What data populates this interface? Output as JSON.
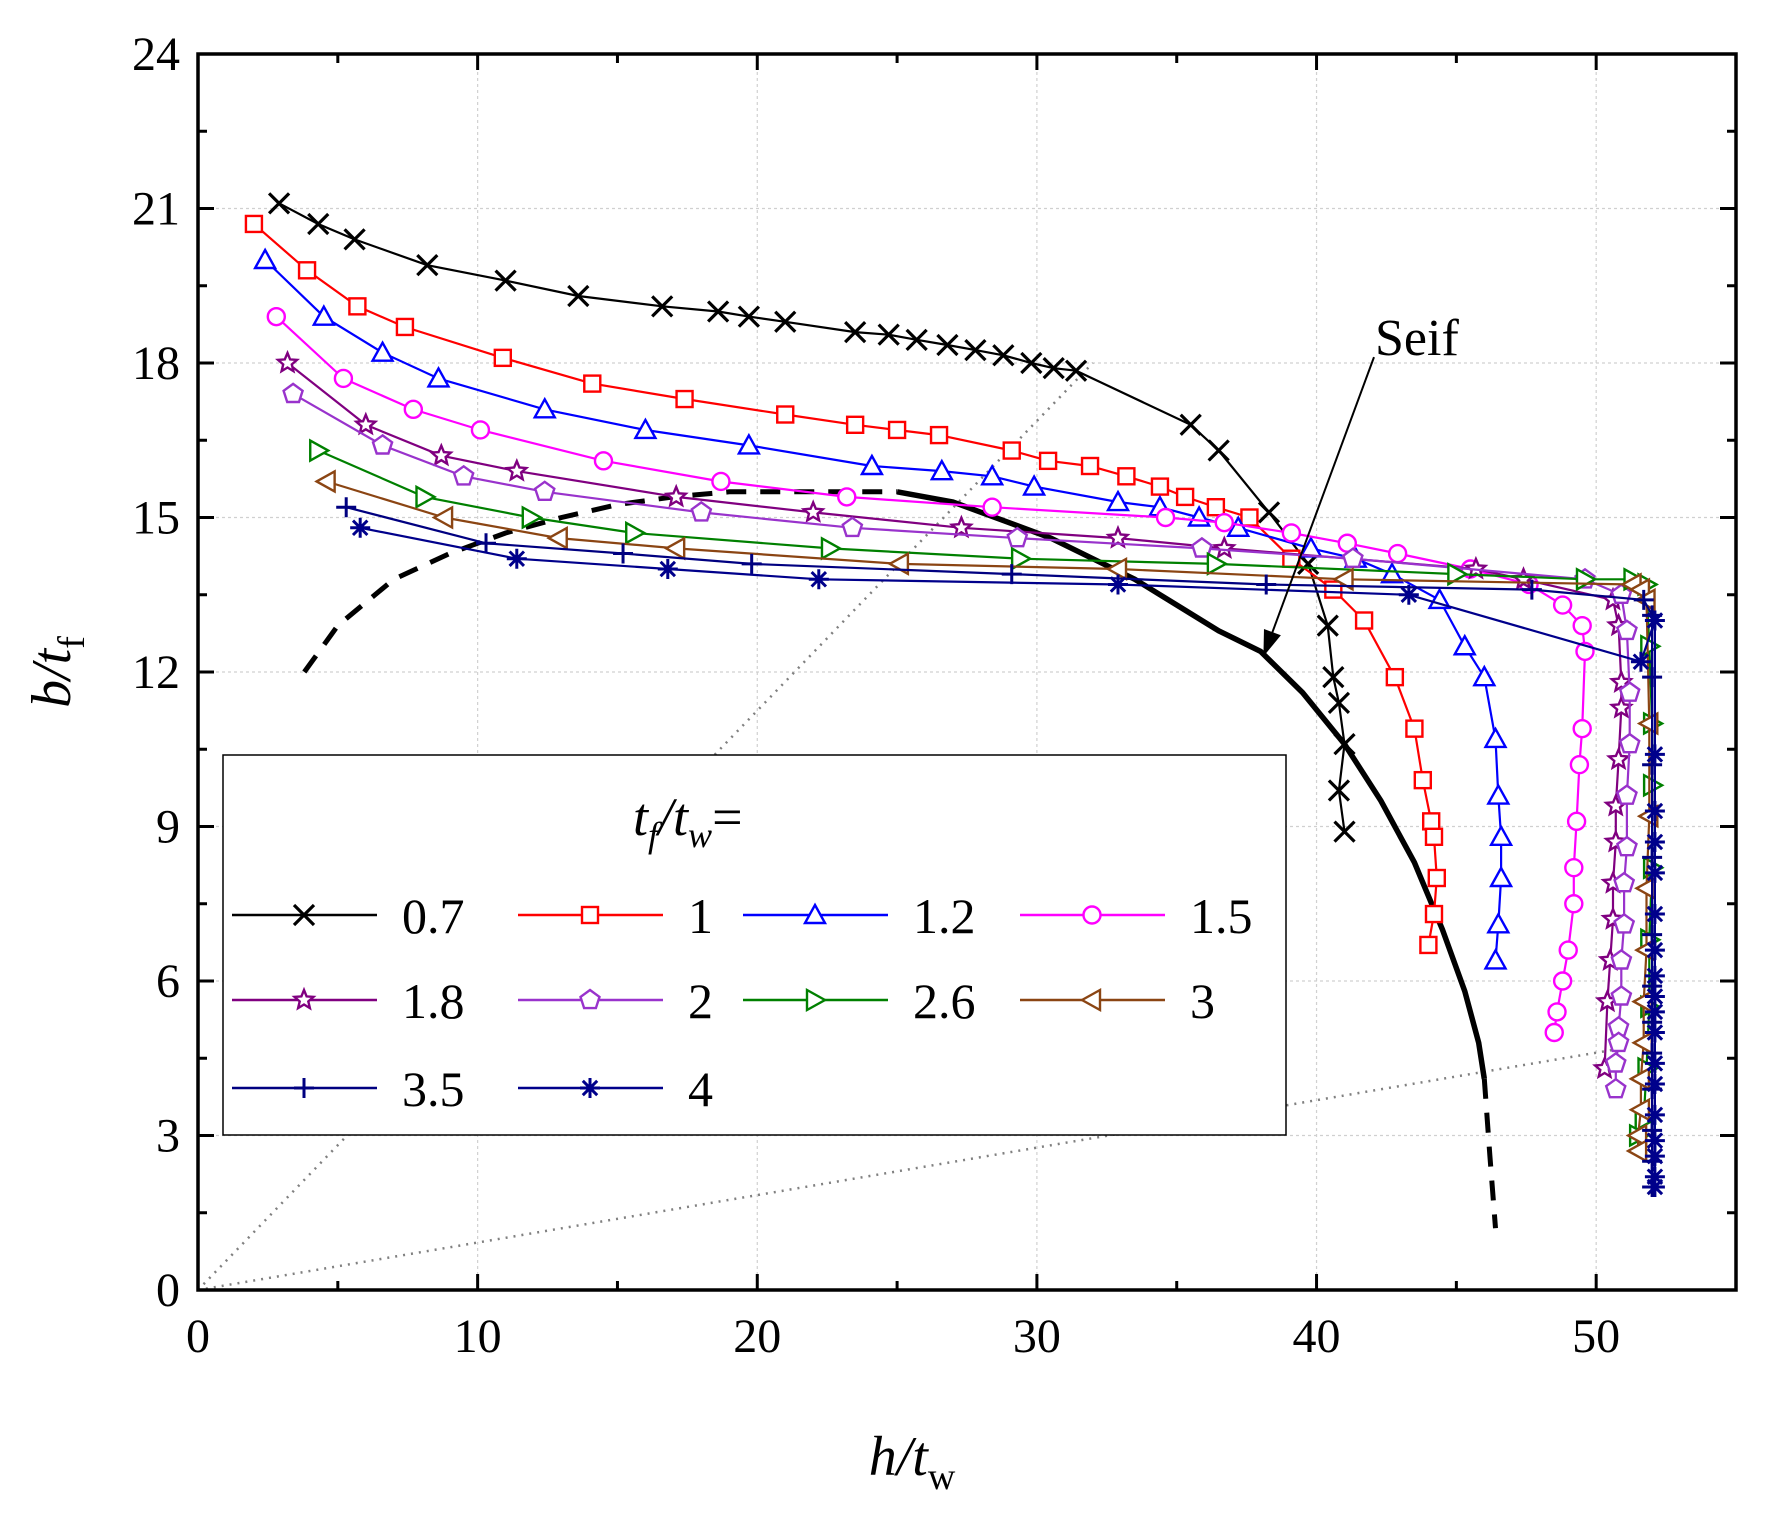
{
  "chart_data": {
    "type": "line",
    "xlim": [
      0,
      55
    ],
    "ylim": [
      0,
      24
    ],
    "xticks": [
      "0",
      "10",
      "20",
      "30",
      "40",
      "50"
    ],
    "yticks": [
      "0",
      "3",
      "6",
      "9",
      "12",
      "15",
      "18",
      "21",
      "24"
    ],
    "grid": true,
    "xlabel": {
      "main": "h/t",
      "sub": "w"
    },
    "ylabel": {
      "main": "b/t",
      "sub": "f"
    },
    "legend": {
      "title_main": "t",
      "title_sub": "f",
      "title_mid": "/t",
      "title_sub2": "w",
      "title_tail": "=",
      "placement": "left-middle"
    },
    "annotation": {
      "text": "Seif",
      "point": [
        38.1,
        12.3
      ],
      "text_at": [
        44.2,
        18.6
      ]
    },
    "series": [
      {
        "name": "0.7",
        "color": "#000000",
        "marker": "x",
        "x": [
          2.9,
          4.3,
          5.6,
          8.2,
          11.0,
          13.6,
          16.6,
          18.6,
          19.7,
          21.0,
          23.5,
          24.7,
          25.7,
          26.8,
          27.8,
          28.8,
          29.8,
          30.6,
          31.4,
          35.5,
          36.5,
          38.3,
          39.7,
          40.4,
          40.6,
          40.8,
          41.0,
          40.8,
          41.0
        ],
        "y": [
          21.1,
          20.7,
          20.4,
          19.9,
          19.6,
          19.3,
          19.1,
          19.0,
          18.9,
          18.8,
          18.6,
          18.55,
          18.45,
          18.35,
          18.25,
          18.15,
          18.0,
          17.9,
          17.85,
          16.8,
          16.3,
          15.1,
          14.1,
          12.9,
          11.9,
          11.4,
          10.6,
          9.7,
          8.9
        ]
      },
      {
        "name": "1",
        "color": "#ff0000",
        "marker": "square",
        "x": [
          2.0,
          3.9,
          5.7,
          7.4,
          10.9,
          14.1,
          17.4,
          21.0,
          23.5,
          25.0,
          26.5,
          29.1,
          30.4,
          31.9,
          33.2,
          34.4,
          35.3,
          36.4,
          37.6,
          39.1,
          40.6,
          41.7,
          42.8,
          43.5,
          43.8,
          44.1,
          44.2,
          44.3,
          44.2,
          44.0
        ],
        "y": [
          20.7,
          19.8,
          19.1,
          18.7,
          18.1,
          17.6,
          17.3,
          17.0,
          16.8,
          16.7,
          16.6,
          16.3,
          16.1,
          16.0,
          15.8,
          15.6,
          15.4,
          15.2,
          15.0,
          14.2,
          13.6,
          13.0,
          11.9,
          10.9,
          9.9,
          9.1,
          8.8,
          8.0,
          7.3,
          6.7
        ]
      },
      {
        "name": "1.2",
        "color": "#0000ff",
        "marker": "triangle-up",
        "x": [
          2.4,
          4.5,
          6.6,
          8.6,
          12.4,
          16.0,
          19.7,
          24.1,
          26.6,
          28.4,
          29.9,
          32.9,
          34.4,
          35.8,
          37.2,
          39.8,
          41.4,
          42.7,
          44.4,
          45.3,
          46.0,
          46.4,
          46.5,
          46.6,
          46.6,
          46.5,
          46.4
        ],
        "y": [
          20.0,
          18.9,
          18.2,
          17.7,
          17.1,
          16.7,
          16.4,
          16.0,
          15.9,
          15.8,
          15.6,
          15.3,
          15.2,
          15.0,
          14.8,
          14.4,
          14.2,
          13.9,
          13.4,
          12.5,
          11.9,
          10.7,
          9.6,
          8.8,
          8.0,
          7.1,
          6.4
        ]
      },
      {
        "name": "1.5",
        "color": "#ff00ff",
        "marker": "circle",
        "x": [
          2.8,
          5.2,
          7.7,
          10.1,
          14.5,
          18.7,
          23.2,
          28.4,
          34.6,
          36.7,
          39.1,
          41.1,
          42.9,
          45.5,
          47.6,
          48.8,
          49.5,
          49.6,
          49.5,
          49.4,
          49.3,
          49.2,
          49.2,
          49.0,
          48.8,
          48.6,
          48.5
        ],
        "y": [
          18.9,
          17.7,
          17.1,
          16.7,
          16.1,
          15.7,
          15.4,
          15.2,
          15.0,
          14.9,
          14.7,
          14.5,
          14.3,
          14.0,
          13.7,
          13.3,
          12.9,
          12.4,
          10.9,
          10.2,
          9.1,
          8.2,
          7.5,
          6.6,
          6.0,
          5.4,
          5.0
        ]
      },
      {
        "name": "1.8",
        "color": "#800080",
        "marker": "star",
        "x": [
          3.2,
          6.0,
          8.7,
          11.4,
          17.1,
          22.0,
          27.3,
          32.9,
          36.7,
          45.7,
          47.4,
          50.6,
          50.8,
          50.9,
          50.9,
          50.8,
          50.7,
          50.7,
          50.6,
          50.6,
          50.5,
          50.4,
          50.3
        ],
        "y": [
          18.0,
          16.8,
          16.2,
          15.9,
          15.4,
          15.1,
          14.8,
          14.6,
          14.4,
          14.0,
          13.8,
          13.4,
          12.9,
          11.8,
          11.3,
          10.3,
          9.4,
          8.7,
          7.9,
          7.2,
          6.4,
          5.6,
          4.3
        ]
      },
      {
        "name": "2",
        "color": "#9933cc",
        "marker": "pentagon",
        "x": [
          3.4,
          6.6,
          9.5,
          12.4,
          18.0,
          23.4,
          29.3,
          35.9,
          41.3,
          49.6,
          50.9,
          51.1,
          51.2,
          51.2,
          51.1,
          51.1,
          51.0,
          51.0,
          50.9,
          50.9,
          50.8,
          50.8,
          50.7,
          50.7
        ],
        "y": [
          17.4,
          16.4,
          15.8,
          15.5,
          15.1,
          14.8,
          14.6,
          14.4,
          14.2,
          13.8,
          13.5,
          12.8,
          11.6,
          10.6,
          9.6,
          8.6,
          7.9,
          7.1,
          6.4,
          5.7,
          5.1,
          4.8,
          4.4,
          3.9
        ]
      },
      {
        "name": "2.6",
        "color": "#008000",
        "marker": "triangle-right",
        "x": [
          4.3,
          8.1,
          11.9,
          15.6,
          22.6,
          29.4,
          36.4,
          45.0,
          49.6,
          51.3,
          51.8,
          51.9,
          52.0,
          52.0,
          52.0,
          51.9,
          51.9,
          51.8,
          51.7,
          51.5
        ],
        "y": [
          16.3,
          15.4,
          15.0,
          14.7,
          14.4,
          14.2,
          14.1,
          13.9,
          13.8,
          13.8,
          13.7,
          12.5,
          11.0,
          9.8,
          8.2,
          6.8,
          5.5,
          4.3,
          3.3,
          3.0
        ]
      },
      {
        "name": "3",
        "color": "#8b4513",
        "marker": "triangle-left",
        "x": [
          4.6,
          8.8,
          12.9,
          17.1,
          25.1,
          32.9,
          41.0,
          51.3,
          51.6,
          51.8,
          51.9,
          51.9,
          51.8,
          51.8,
          51.7,
          51.7,
          51.6,
          51.6,
          51.5,
          51.5
        ],
        "y": [
          15.7,
          15.0,
          14.6,
          14.4,
          14.1,
          14.0,
          13.8,
          13.7,
          13.6,
          13.4,
          11.0,
          9.2,
          7.8,
          6.6,
          5.6,
          4.8,
          4.1,
          3.5,
          3.0,
          2.7
        ]
      },
      {
        "name": "3.5",
        "color": "#000080",
        "marker": "plus",
        "x": [
          5.3,
          10.3,
          15.2,
          19.8,
          29.1,
          38.2,
          47.7,
          51.7,
          52.0,
          52.0,
          52.0,
          52.0,
          52.0,
          52.0,
          52.0,
          52.0,
          52.0,
          52.0,
          52.0,
          52.0
        ],
        "y": [
          15.2,
          14.5,
          14.3,
          14.1,
          13.9,
          13.7,
          13.6,
          13.4,
          13.1,
          11.9,
          10.2,
          8.4,
          6.9,
          5.9,
          5.2,
          4.6,
          3.9,
          3.1,
          2.5,
          2.0
        ]
      },
      {
        "name": "4",
        "color": "#00008b",
        "marker": "asterisk",
        "x": [
          5.8,
          11.4,
          16.8,
          22.2,
          32.9,
          43.3,
          51.6,
          52.1,
          52.1,
          52.1,
          52.1,
          52.1,
          52.1,
          52.1,
          52.1,
          52.1,
          52.1,
          52.1,
          52.1,
          52.1,
          52.1,
          52.1,
          52.1,
          52.1,
          52.1
        ],
        "y": [
          14.8,
          14.2,
          14.0,
          13.8,
          13.7,
          13.5,
          12.2,
          13.0,
          10.4,
          9.3,
          8.7,
          8.1,
          7.3,
          6.6,
          6.1,
          5.7,
          5.4,
          5.0,
          4.4,
          4.0,
          3.4,
          2.9,
          2.6,
          2.2,
          2.0
        ]
      }
    ],
    "seif_curve": {
      "solid_x": [
        25.0,
        27.0,
        29.0,
        30.5,
        32.0,
        33.5,
        35.0,
        36.5,
        38.0,
        39.5,
        41.0,
        42.3,
        43.5,
        44.5,
        45.3,
        45.8,
        46.0
      ],
      "solid_y": [
        15.5,
        15.3,
        14.9,
        14.6,
        14.2,
        13.8,
        13.3,
        12.8,
        12.4,
        11.6,
        10.6,
        9.5,
        8.3,
        7.0,
        5.8,
        4.8,
        4.1
      ],
      "dash_left_x": [
        3.8,
        5.0,
        7.0,
        9.0,
        11.0,
        13.0,
        15.0,
        17.0,
        19.0,
        21.0,
        23.0,
        25.0
      ],
      "dash_left_y": [
        12.0,
        12.9,
        13.8,
        14.3,
        14.7,
        15.0,
        15.25,
        15.4,
        15.5,
        15.5,
        15.5,
        15.5
      ],
      "dash_right_x": [
        46.0,
        46.2,
        46.4
      ],
      "dash_right_y": [
        4.1,
        2.6,
        1.2
      ]
    },
    "dotted_lines": [
      {
        "x": [
          0,
          32
        ],
        "y": [
          0,
          18
        ]
      },
      {
        "x": [
          0,
          51
        ],
        "y": [
          0,
          4.7
        ]
      }
    ]
  }
}
